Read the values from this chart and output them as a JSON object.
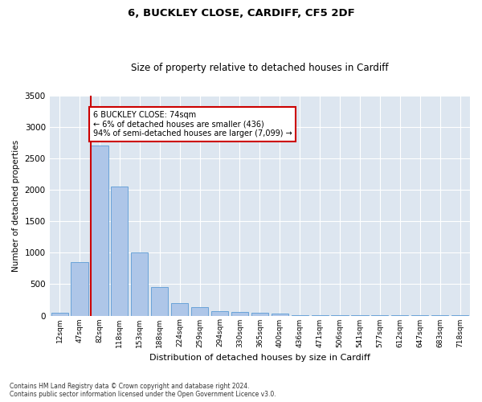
{
  "title1": "6, BUCKLEY CLOSE, CARDIFF, CF5 2DF",
  "title2": "Size of property relative to detached houses in Cardiff",
  "xlabel": "Distribution of detached houses by size in Cardiff",
  "ylabel": "Number of detached properties",
  "footnote1": "Contains HM Land Registry data © Crown copyright and database right 2024.",
  "footnote2": "Contains public sector information licensed under the Open Government Licence v3.0.",
  "annotation_line1": "6 BUCKLEY CLOSE: 74sqm",
  "annotation_line2": "← 6% of detached houses are smaller (436)",
  "annotation_line3": "94% of semi-detached houses are larger (7,099) →",
  "bar_labels": [
    "12sqm",
    "47sqm",
    "82sqm",
    "118sqm",
    "153sqm",
    "188sqm",
    "224sqm",
    "259sqm",
    "294sqm",
    "330sqm",
    "365sqm",
    "400sqm",
    "436sqm",
    "471sqm",
    "506sqm",
    "541sqm",
    "577sqm",
    "612sqm",
    "647sqm",
    "683sqm",
    "718sqm"
  ],
  "bar_values": [
    47,
    850,
    2700,
    2050,
    1000,
    450,
    200,
    130,
    70,
    60,
    50,
    30,
    10,
    5,
    3,
    2,
    1,
    1,
    1,
    1,
    1
  ],
  "property_bar_index": 2,
  "bar_color": "#aec6e8",
  "bar_edge_color": "#5b9bd5",
  "red_line_color": "#cc0000",
  "annotation_box_edge": "#cc0000",
  "background_color": "#ffffff",
  "plot_bg_color": "#dde6f0",
  "grid_color": "#ffffff",
  "ylim": [
    0,
    3500
  ],
  "yticks": [
    0,
    500,
    1000,
    1500,
    2000,
    2500,
    3000,
    3500
  ]
}
